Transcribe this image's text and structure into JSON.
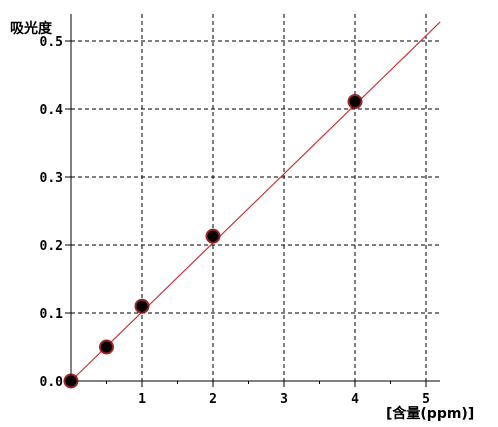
{
  "chart_data": {
    "type": "scatter",
    "title": "",
    "ylabel": "吸光度",
    "xlabel": "[含量(ppm)]",
    "xlim": [
      0,
      5
    ],
    "ylim": [
      0,
      0.5
    ],
    "x_ticks": [
      "1",
      "2",
      "3",
      "4",
      "5"
    ],
    "y_ticks": [
      "0.0",
      "0.1",
      "0.2",
      "0.3",
      "0.4",
      "0.5"
    ],
    "grid": true,
    "grid_style": "dashed",
    "points": [
      {
        "x": 0,
        "y": 0
      },
      {
        "x": 0.5,
        "y": 0.05
      },
      {
        "x": 1,
        "y": 0.11
      },
      {
        "x": 2,
        "y": 0.213
      },
      {
        "x": 4,
        "y": 0.411
      }
    ],
    "fit_line": {
      "x": [
        0,
        5.2
      ],
      "y": [
        0,
        0.528
      ]
    },
    "colors": {
      "points": "#000000",
      "point_halo": "#8b0000",
      "fit_line": "#cc3333",
      "grid": "#000000"
    }
  }
}
